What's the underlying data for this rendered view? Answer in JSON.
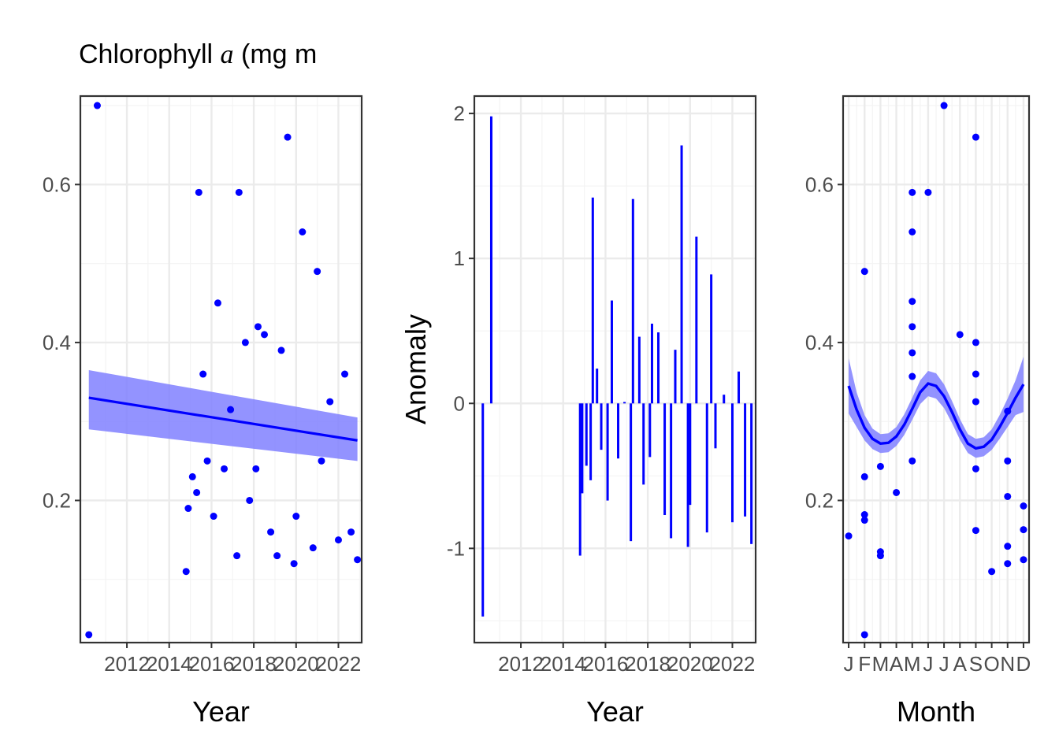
{
  "title": "Chlorophyll",
  "title_symbol": "a",
  "title_unit": "(mg m",
  "colors": {
    "points": "#0000ff",
    "line": "#0000ff",
    "band": "#8080ff",
    "grid_major": "#ebebeb",
    "grid_minor": "#f4f4f4",
    "border": "#333333"
  },
  "chart_data": [
    {
      "type": "scatter",
      "panel": "annual",
      "xlabel": "Year",
      "ylabel": "",
      "xlim": [
        2009.8,
        2023.1
      ],
      "ylim": [
        0.02,
        0.712
      ],
      "xticks": [
        2012,
        2014,
        2016,
        2018,
        2020,
        2022
      ],
      "yticks": [
        0.2,
        0.4,
        0.6
      ],
      "ytick_labels": [
        "0.2",
        "0.4",
        "0.6"
      ],
      "grid": true,
      "points": [
        [
          2010.2,
          0.03
        ],
        [
          2010.6,
          0.7
        ],
        [
          2014.8,
          0.11
        ],
        [
          2014.9,
          0.19
        ],
        [
          2015.1,
          0.23
        ],
        [
          2015.3,
          0.21
        ],
        [
          2015.4,
          0.59
        ],
        [
          2015.6,
          0.36
        ],
        [
          2015.8,
          0.25
        ],
        [
          2016.1,
          0.18
        ],
        [
          2016.3,
          0.45
        ],
        [
          2016.6,
          0.24
        ],
        [
          2016.9,
          0.315
        ],
        [
          2017.2,
          0.13
        ],
        [
          2017.3,
          0.59
        ],
        [
          2017.6,
          0.4
        ],
        [
          2017.8,
          0.2
        ],
        [
          2018.1,
          0.24
        ],
        [
          2018.2,
          0.42
        ],
        [
          2018.5,
          0.41
        ],
        [
          2018.8,
          0.16
        ],
        [
          2019.1,
          0.13
        ],
        [
          2019.3,
          0.39
        ],
        [
          2019.6,
          0.66
        ],
        [
          2019.9,
          0.12
        ],
        [
          2020.0,
          0.18
        ],
        [
          2020.3,
          0.54
        ],
        [
          2020.8,
          0.14
        ],
        [
          2021.0,
          0.49
        ],
        [
          2021.2,
          0.25
        ],
        [
          2021.6,
          0.325
        ],
        [
          2022.0,
          0.15
        ],
        [
          2022.3,
          0.36
        ],
        [
          2022.6,
          0.16
        ],
        [
          2022.9,
          0.125
        ]
      ],
      "trend": {
        "x": [
          2010.2,
          2022.9
        ],
        "y": [
          0.33,
          0.276
        ],
        "ci_lower": [
          0.29,
          0.25
        ],
        "ci_upper": [
          0.365,
          0.305
        ]
      }
    },
    {
      "type": "bar",
      "panel": "anomaly",
      "xlabel": "Year",
      "ylabel": "Anomaly",
      "xlim": [
        2009.8,
        2023.1
      ],
      "ylim": [
        -1.65,
        2.12
      ],
      "xticks": [
        2012,
        2014,
        2016,
        2018,
        2020,
        2022
      ],
      "yticks": [
        -1,
        0,
        1,
        2
      ],
      "ytick_labels": [
        "-1",
        "0",
        "1",
        "2"
      ],
      "grid": true,
      "bars": [
        [
          2010.2,
          -1.47
        ],
        [
          2010.6,
          1.98
        ],
        [
          2014.8,
          -1.05
        ],
        [
          2014.9,
          -0.62
        ],
        [
          2015.1,
          -0.43
        ],
        [
          2015.3,
          -0.53
        ],
        [
          2015.4,
          1.42
        ],
        [
          2015.6,
          0.24
        ],
        [
          2015.8,
          -0.32
        ],
        [
          2016.1,
          -0.67
        ],
        [
          2016.3,
          0.71
        ],
        [
          2016.6,
          -0.38
        ],
        [
          2016.9,
          0.01
        ],
        [
          2017.2,
          -0.95
        ],
        [
          2017.3,
          1.41
        ],
        [
          2017.6,
          0.46
        ],
        [
          2017.8,
          -0.56
        ],
        [
          2018.1,
          -0.37
        ],
        [
          2018.2,
          0.55
        ],
        [
          2018.5,
          0.49
        ],
        [
          2018.8,
          -0.77
        ],
        [
          2019.1,
          -0.93
        ],
        [
          2019.3,
          0.37
        ],
        [
          2019.6,
          1.78
        ],
        [
          2019.9,
          -0.99
        ],
        [
          2020.0,
          -0.7
        ],
        [
          2020.3,
          1.15
        ],
        [
          2020.8,
          -0.89
        ],
        [
          2021.0,
          0.89
        ],
        [
          2021.2,
          -0.31
        ],
        [
          2021.6,
          0.06
        ],
        [
          2022.0,
          -0.82
        ],
        [
          2022.3,
          0.22
        ],
        [
          2022.6,
          -0.78
        ],
        [
          2022.9,
          -0.97
        ]
      ]
    },
    {
      "type": "scatter",
      "panel": "monthly",
      "xlabel": "Month",
      "ylabel": "",
      "xlim": [
        0.65,
        12.35
      ],
      "ylim": [
        0.02,
        0.712
      ],
      "xticks": [
        1,
        2,
        3,
        4,
        5,
        6,
        7,
        8,
        9,
        10,
        11,
        12
      ],
      "xtick_labels": [
        "J",
        "F",
        "M",
        "A",
        "M",
        "J",
        "J",
        "A",
        "S",
        "O",
        "N",
        "D"
      ],
      "yticks": [
        0.2,
        0.4,
        0.6
      ],
      "ytick_labels": [
        "0.2",
        "0.4",
        "0.6"
      ],
      "grid": true,
      "points": [
        [
          1,
          0.155
        ],
        [
          2,
          0.03
        ],
        [
          2,
          0.175
        ],
        [
          2,
          0.182
        ],
        [
          2,
          0.23
        ],
        [
          2,
          0.49
        ],
        [
          3,
          0.13
        ],
        [
          3,
          0.135
        ],
        [
          3,
          0.243
        ],
        [
          4,
          0.21
        ],
        [
          5,
          0.25
        ],
        [
          5,
          0.357
        ],
        [
          5,
          0.387
        ],
        [
          5,
          0.42
        ],
        [
          5,
          0.452
        ],
        [
          5,
          0.54
        ],
        [
          5,
          0.59
        ],
        [
          6,
          0.59
        ],
        [
          7,
          0.7
        ],
        [
          8,
          0.41
        ],
        [
          9,
          0.162
        ],
        [
          9,
          0.24
        ],
        [
          9,
          0.325
        ],
        [
          9,
          0.36
        ],
        [
          9,
          0.4
        ],
        [
          9,
          0.66
        ],
        [
          10,
          0.11
        ],
        [
          11,
          0.12
        ],
        [
          11,
          0.142
        ],
        [
          11,
          0.205
        ],
        [
          11,
          0.25
        ],
        [
          11,
          0.313
        ],
        [
          12,
          0.125
        ],
        [
          12,
          0.163
        ],
        [
          12,
          0.193
        ]
      ],
      "smooth": {
        "x": [
          1,
          1.5,
          2,
          2.5,
          3,
          3.5,
          4,
          4.5,
          5,
          5.5,
          6,
          6.5,
          7,
          7.5,
          8,
          8.5,
          9,
          9.5,
          10,
          10.5,
          11,
          11.5,
          12
        ],
        "y": [
          0.345,
          0.315,
          0.292,
          0.278,
          0.272,
          0.273,
          0.281,
          0.296,
          0.316,
          0.337,
          0.348,
          0.345,
          0.332,
          0.312,
          0.29,
          0.272,
          0.266,
          0.268,
          0.277,
          0.293,
          0.311,
          0.33,
          0.347
        ],
        "band": [
          0.035,
          0.022,
          0.016,
          0.013,
          0.012,
          0.012,
          0.012,
          0.013,
          0.014,
          0.015,
          0.016,
          0.016,
          0.015,
          0.014,
          0.013,
          0.012,
          0.012,
          0.012,
          0.013,
          0.015,
          0.018,
          0.022,
          0.035
        ]
      }
    }
  ]
}
